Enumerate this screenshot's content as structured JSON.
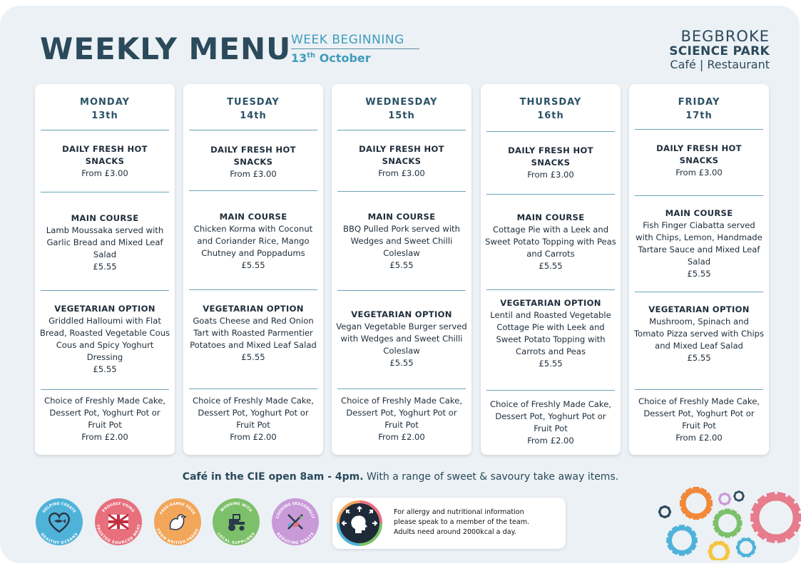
{
  "header": {
    "title": "WEEKLY MENU",
    "week_label": "WEEK BEGINNING",
    "week_day": "13",
    "week_day_suffix": "th",
    "week_month": " October"
  },
  "logo": {
    "line1": "BEGBROKE",
    "line2": "SCIENCE PARK",
    "line3": "Café | Restaurant"
  },
  "days": [
    {
      "name": "MONDAY",
      "date": "13th",
      "snacks_title": "DAILY FRESH HOT SNACKS",
      "snacks_price": "From £3.00",
      "main_title": "MAIN COURSE",
      "main_desc": "Lamb Moussaka served with Garlic Bread and Mixed Leaf Salad",
      "main_price": "£5.55",
      "veg_title": "VEGETARIAN OPTION",
      "veg_desc": "Griddled Halloumi with Flat Bread, Roasted Vegetable Cous Cous and Spicy Yoghurt Dressing",
      "veg_price": "£5.55",
      "dessert_desc": "Choice of Freshly Made Cake, Dessert Pot, Yoghurt Pot or Fruit Pot",
      "dessert_price": "From £2.00"
    },
    {
      "name": "TUESDAY",
      "date": "14th",
      "snacks_title": "DAILY FRESH HOT SNACKS",
      "snacks_price": "From £3.00",
      "main_title": "MAIN COURSE",
      "main_desc": "Chicken Korma with Coconut and Coriander Rice, Mango Chutney and Poppadums",
      "main_price": "£5.55",
      "veg_title": "VEGETARIAN OPTION",
      "veg_desc": "Goats Cheese and Red Onion Tart with Roasted Parmentier Potatoes and Mixed Leaf Salad",
      "veg_price": "£5.55",
      "dessert_desc": "Choice of Freshly Made Cake, Dessert Pot, Yoghurt Pot or Fruit Pot",
      "dessert_price": "From £2.00"
    },
    {
      "name": "WEDNESDAY",
      "date": "15th",
      "snacks_title": "DAILY FRESH HOT SNACKS",
      "snacks_price": "From £3.00",
      "main_title": "MAIN COURSE",
      "main_desc": "BBQ Pulled Pork served with Wedges and Sweet Chilli Coleslaw",
      "main_price": "£5.55",
      "veg_title": "VEGETARIAN OPTION",
      "veg_desc": "Vegan Vegetable Burger served with Wedges and Sweet Chilli Coleslaw",
      "veg_price": "£5.55",
      "dessert_desc": "Choice of Freshly Made Cake, Dessert Pot, Yoghurt Pot or Fruit Pot",
      "dessert_price": "From £2.00"
    },
    {
      "name": "THURSDAY",
      "date": "16th",
      "snacks_title": "DAILY FRESH HOT SNACKS",
      "snacks_price": "From £3.00",
      "main_title": "MAIN COURSE",
      "main_desc": "Cottage Pie with a Leek and Sweet Potato Topping with Peas and Carrots",
      "main_price": "£5.55",
      "veg_title": "VEGETARIAN OPTION",
      "veg_desc": "Lentil and Roasted Vegetable Cottage Pie with Leek and Sweet Potato Topping with Carrots and Peas",
      "veg_price": "£5.55",
      "dessert_desc": "Choice of Freshly Made Cake, Dessert Pot, Yoghurt Pot or Fruit Pot",
      "dessert_price": "From £2.00"
    },
    {
      "name": "FRIDAY",
      "date": "17th",
      "snacks_title": "DAILY FRESH HOT SNACKS",
      "snacks_price": "From £3.00",
      "main_title": "MAIN COURSE",
      "main_desc": "Fish Finger Ciabatta served with Chips, Lemon, Handmade Tartare Sauce and Mixed Leaf Salad",
      "main_price": "£5.55",
      "veg_title": "VEGETARIAN OPTION",
      "veg_desc": "Mushroom, Spinach and Tomato Pizza served with Chips and Mixed Leaf Salad",
      "veg_price": "£5.55",
      "dessert_desc": "Choice of Freshly Made Cake, Dessert Pot, Yoghurt Pot or Fruit Pot",
      "dessert_price": "From £2.00"
    }
  ],
  "footer": {
    "bold": "Café in the CIE open 8am - 4pm.",
    "rest": " With a range of sweet & savoury take away items."
  },
  "badges": [
    {
      "icon": "heart-fish-icon",
      "color": "#4fb3d9",
      "top": "HELPING CREATE",
      "bottom": "HEALTHY OCEANS"
    },
    {
      "icon": "union-flag-icon",
      "color": "#e8707d",
      "top": "PROUDLY USING",
      "bottom": "TRUSTED SOURCED MEAT"
    },
    {
      "icon": "hen-icon",
      "color": "#f2a65a",
      "top": "FREE-RANGE EGGS",
      "bottom": "FROM BRITISH FARMS"
    },
    {
      "icon": "tractor-icon",
      "color": "#7dc06a",
      "top": "WORKING WITH",
      "bottom": "LOCAL SUPPLIERS"
    },
    {
      "icon": "cutlery-leaf-icon",
      "color": "#c99ad8",
      "top": "COOKING SEASONALLY",
      "bottom": "REDUCING WASTE"
    }
  ],
  "allergy": {
    "line1": "For allergy and nutritional information",
    "line2": "please speak to a member of the team.",
    "line3": "Adults need around 2000kcal a day."
  },
  "colors": {
    "title": "#2b4a5b",
    "accent": "#3f9cbc",
    "divider": "#6ba2b8"
  }
}
